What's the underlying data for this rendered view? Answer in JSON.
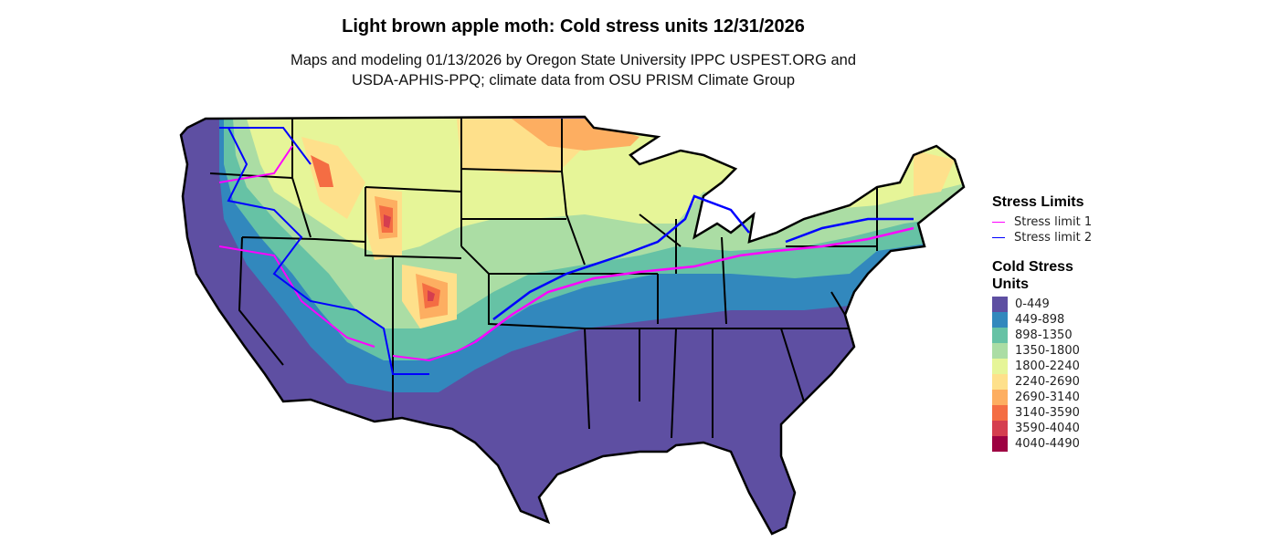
{
  "title": "Light brown apple moth: Cold stress units 12/31/2026",
  "subtitle_line1": "Maps and modeling 01/13/2026 by Oregon State University IPPC USPEST.ORG and",
  "subtitle_line2": "USDA-APHIS-PPQ; climate data from OSU PRISM Climate Group",
  "legend": {
    "stress_title": "Stress Limits",
    "stress_items": [
      {
        "label": "Stress limit 1",
        "color": "#FF00FF"
      },
      {
        "label": "Stress limit 2",
        "color": "#0000FF"
      }
    ],
    "units_title_line1": "Cold Stress",
    "units_title_line2": "Units",
    "units_items": [
      {
        "label": "0-449",
        "color": "#5E4FA2"
      },
      {
        "label": "449-898",
        "color": "#3288BD"
      },
      {
        "label": "898-1350",
        "color": "#66C2A5"
      },
      {
        "label": "1350-1800",
        "color": "#ABDDA4"
      },
      {
        "label": "1800-2240",
        "color": "#E6F598"
      },
      {
        "label": "2240-2690",
        "color": "#FEE08B"
      },
      {
        "label": "2690-3140",
        "color": "#FDAE61"
      },
      {
        "label": "3140-3590",
        "color": "#F46D43"
      },
      {
        "label": "3590-4040",
        "color": "#D53E4F"
      },
      {
        "label": "4040-4490",
        "color": "#9E0142"
      }
    ]
  }
}
